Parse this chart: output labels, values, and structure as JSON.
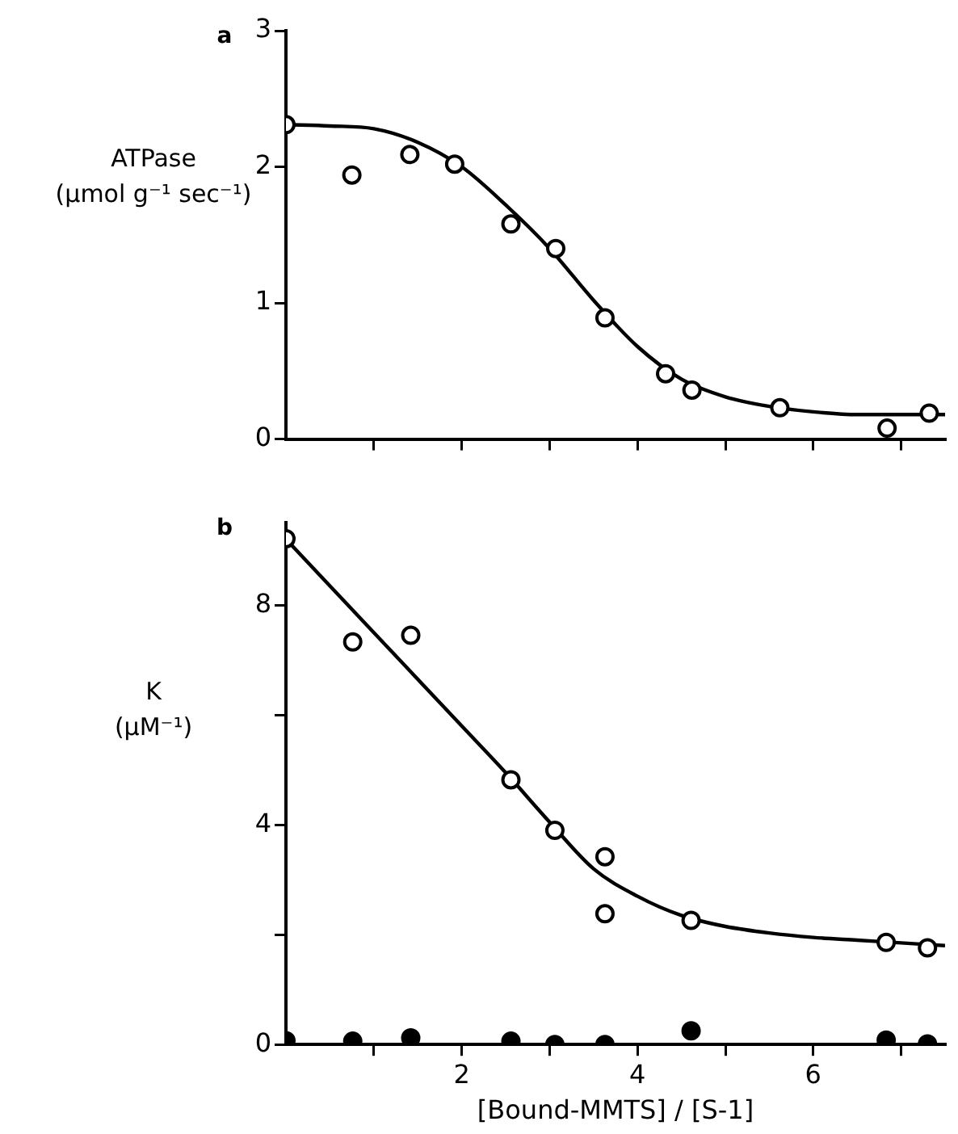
{
  "chart_data": [
    {
      "type": "scatter",
      "ylabel": "ATPase\n(µmol g⁻¹ sec⁻¹)",
      "annotations": [
        "a"
      ],
      "xlim": [
        0,
        7.5
      ],
      "xticks": [
        {
          "value": 1,
          "label": null
        },
        {
          "value": 2,
          "label": null
        },
        {
          "value": 3,
          "label": null
        },
        {
          "value": 4,
          "label": null
        },
        {
          "value": 5,
          "label": null
        },
        {
          "value": 6,
          "label": null
        },
        {
          "value": 7,
          "label": null
        }
      ],
      "ylim": [
        0,
        3
      ],
      "yticks": [
        0,
        1,
        2,
        3
      ],
      "tick_labels": "y",
      "grid": false,
      "legend": false,
      "marker": "circle",
      "series": [
        {
          "color": "#ffffff",
          "x": [
            0,
            0.75,
            1.41,
            1.92,
            2.56,
            3.07,
            3.63,
            4.32,
            4.62,
            5.62,
            6.84,
            7.32
          ],
          "values": [
            2.31,
            1.94,
            2.09,
            2.02,
            1.58,
            1.4,
            0.89,
            0.48,
            0.36,
            0.23,
            0.08,
            0.19
          ]
        },
        {
          "type": "line",
          "marker": "none",
          "color": "#000000",
          "x": [
            0,
            0.5,
            1,
            1.5,
            2,
            2.5,
            3,
            3.5,
            4,
            4.5,
            5,
            5.5,
            6,
            6.5,
            7,
            7.5
          ],
          "values": [
            2.31,
            2.3,
            2.28,
            2.18,
            2.0,
            1.72,
            1.4,
            1.02,
            0.68,
            0.44,
            0.31,
            0.24,
            0.2,
            0.18,
            0.18,
            0.18
          ]
        }
      ]
    },
    {
      "type": "scatter",
      "ylabel": "K\n(µM⁻¹)",
      "xlabel": "[Bound-MMTS] / [S-1]",
      "annotations": [
        "b"
      ],
      "xlim": [
        0,
        7.5
      ],
      "xticks": [
        {
          "value": 1,
          "label": null
        },
        2,
        {
          "value": 3,
          "label": null
        },
        4,
        {
          "value": 5,
          "label": null
        },
        6,
        {
          "value": 7,
          "label": null
        }
      ],
      "ylim": [
        0,
        9.5
      ],
      "yticks": [
        0,
        {
          "value": 2,
          "label": null
        },
        4,
        {
          "value": 6,
          "label": null
        },
        8
      ],
      "grid": false,
      "legend": false,
      "marker": "circle",
      "series": [
        {
          "color": "#ffffff",
          "x": [
            0,
            0.76,
            1.42,
            2.56,
            3.06,
            3.63,
            3.63,
            4.61,
            6.83,
            7.3
          ],
          "values": [
            9.21,
            7.33,
            7.45,
            4.82,
            3.9,
            3.42,
            2.38,
            2.26,
            1.86,
            1.76
          ]
        },
        {
          "color": "#000000",
          "x": [
            0,
            0.76,
            1.42,
            2.56,
            3.06,
            3.63,
            4.61,
            6.83,
            7.3
          ],
          "values": [
            0.07,
            0.06,
            0.12,
            0.06,
            0,
            0,
            0.25,
            0.08,
            0.01
          ]
        },
        {
          "type": "line",
          "marker": "none",
          "color": "#000000",
          "x": [
            0,
            1,
            2,
            2.5,
            3,
            3.5,
            4,
            4.5,
            5,
            5.5,
            6,
            6.5,
            7,
            7.5
          ],
          "values": [
            9.2,
            7.5,
            5.8,
            4.95,
            4.05,
            3.2,
            2.7,
            2.35,
            2.15,
            2.03,
            1.95,
            1.9,
            1.85,
            1.8
          ]
        }
      ]
    }
  ]
}
